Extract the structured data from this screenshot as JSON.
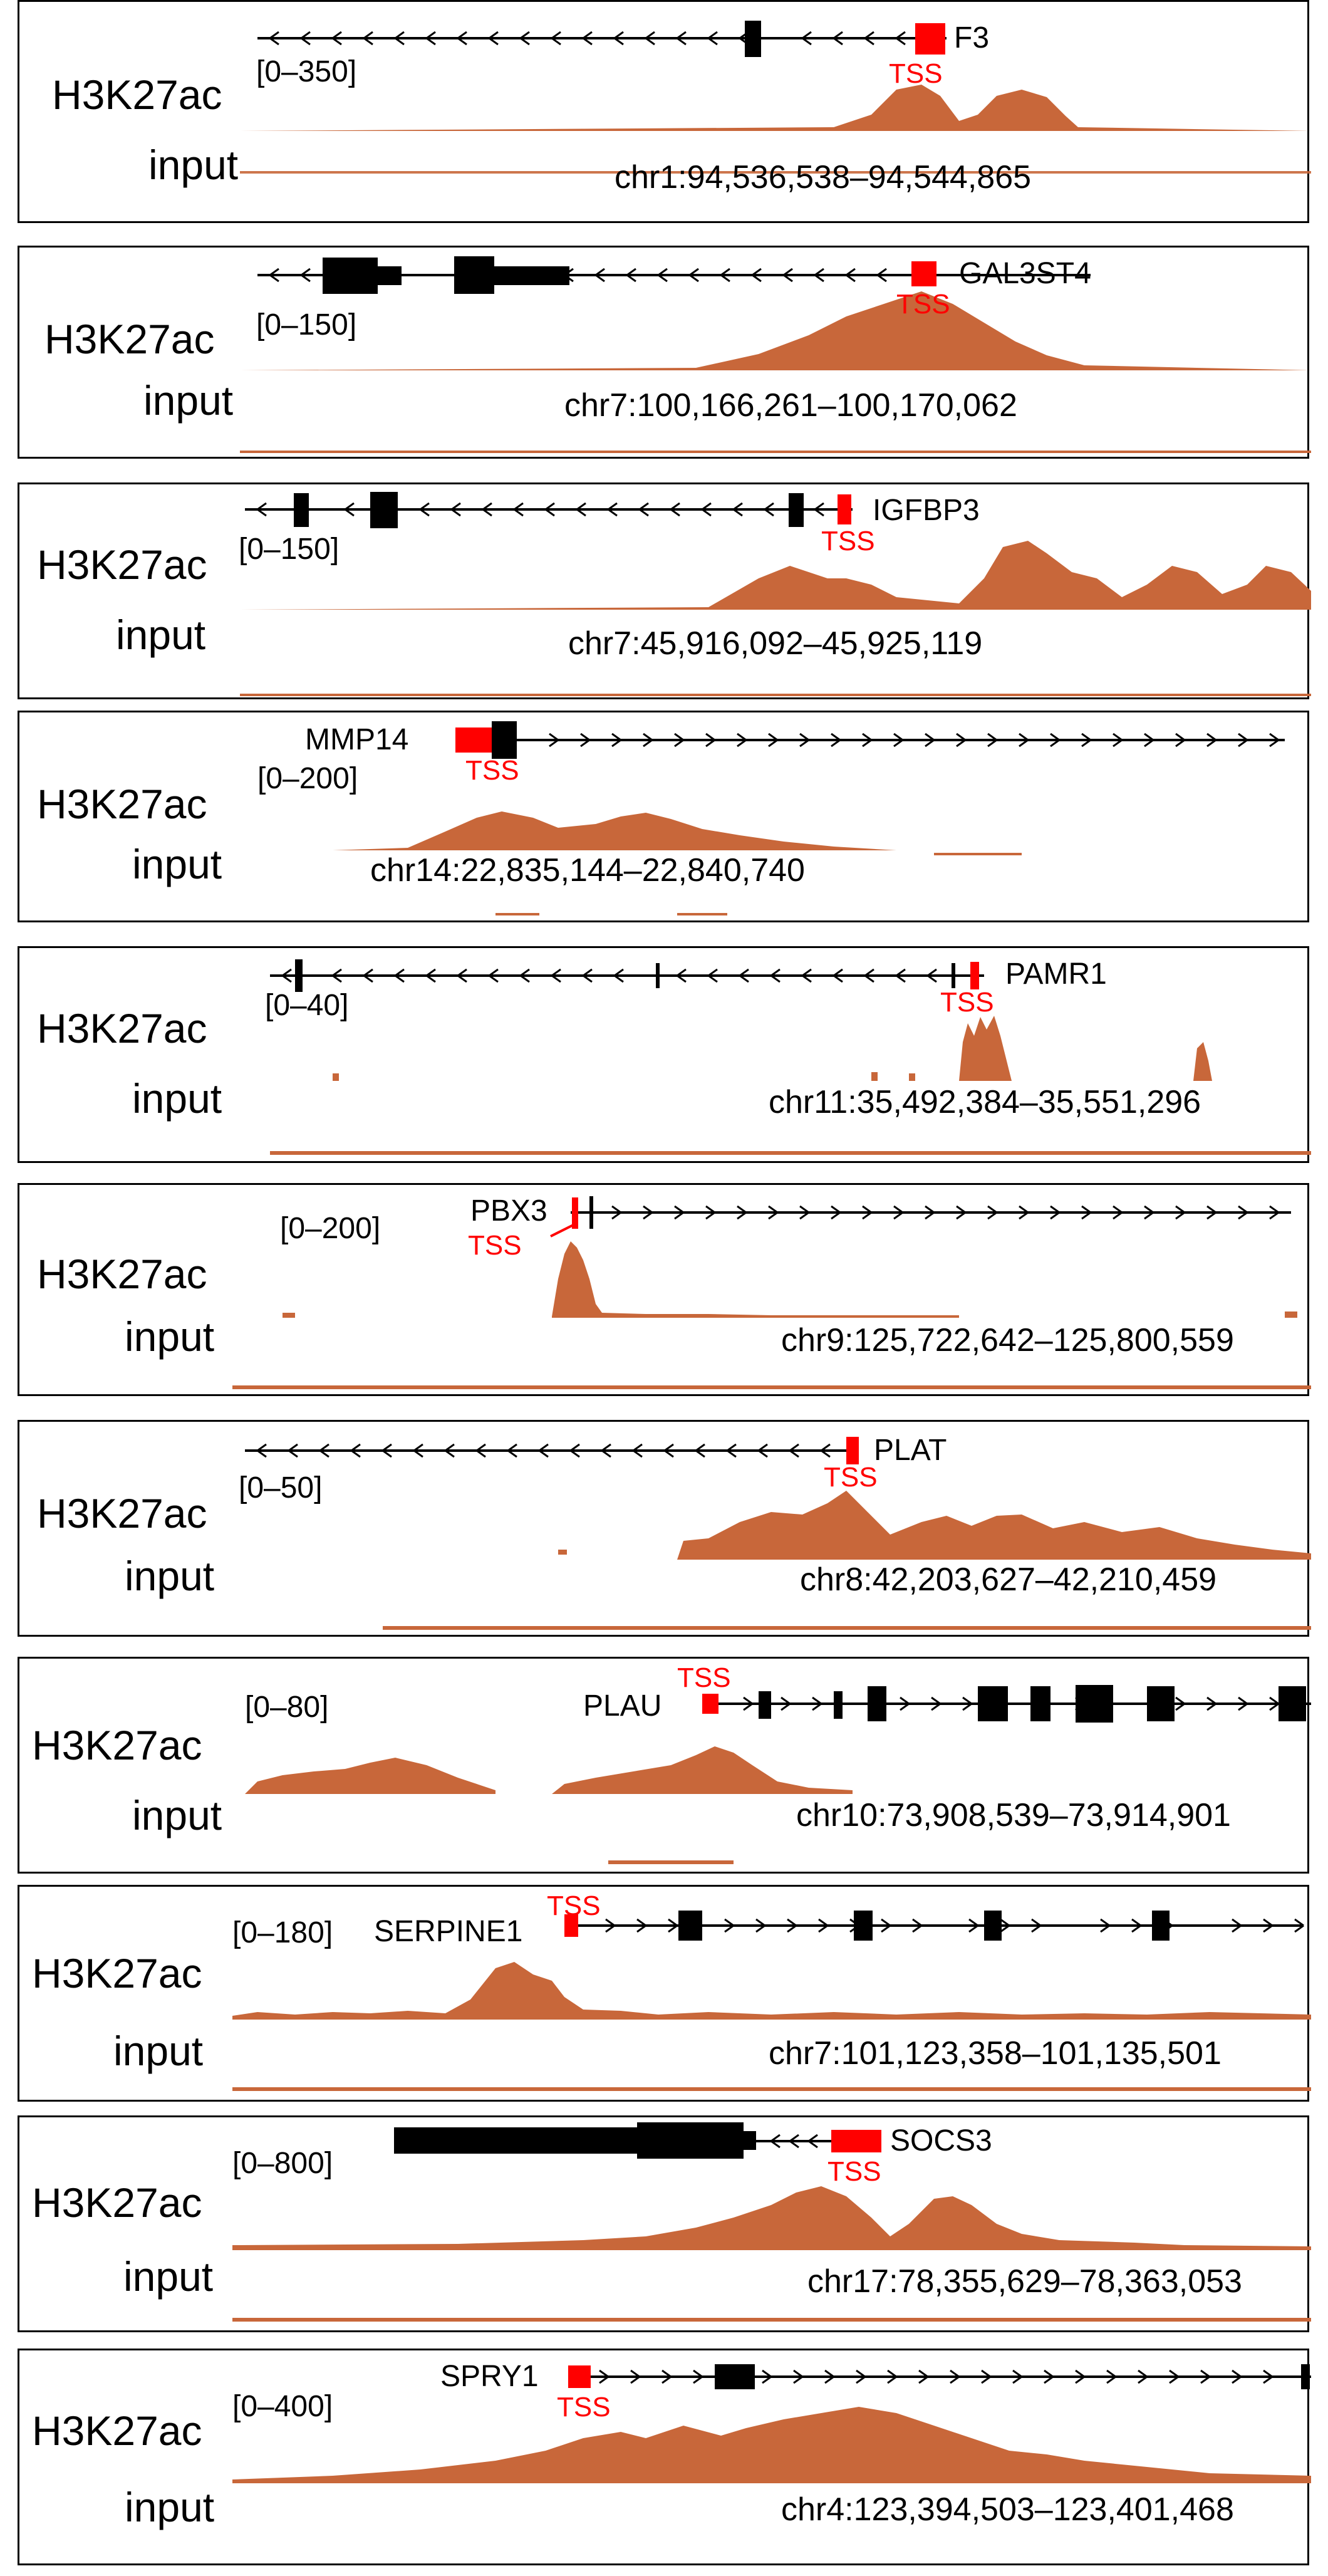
{
  "colors": {
    "signal": "#c8673a",
    "tss": "#ff0000",
    "gene": "#000000"
  },
  "panels": [
    {
      "gene": "F3",
      "strand": "-",
      "scale": "[0–350]",
      "coord": "chr1:94,536,538–94,544,865",
      "mark": "H3K27ac",
      "input": "input",
      "tss": "TSS"
    },
    {
      "gene": "GAL3ST4",
      "strand": "-",
      "scale": "[0–150]",
      "coord": "chr7:100,166,261–100,170,062",
      "mark": "H3K27ac",
      "input": "input",
      "tss": "TSS"
    },
    {
      "gene": "IGFBP3",
      "strand": "-",
      "scale": "[0–150]",
      "coord": "chr7:45,916,092–45,925,119",
      "mark": "H3K27ac",
      "input": "input",
      "tss": "TSS"
    },
    {
      "gene": "MMP14",
      "strand": "+",
      "scale": "[0–200]",
      "coord": "chr14:22,835,144–22,840,740",
      "mark": "H3K27ac",
      "input": "input",
      "tss": "TSS"
    },
    {
      "gene": "PAMR1",
      "strand": "-",
      "scale": "[0–40]",
      "coord": "chr11:35,492,384–35,551,296",
      "mark": "H3K27ac",
      "input": "input",
      "tss": "TSS"
    },
    {
      "gene": "PBX3",
      "strand": "+",
      "scale": "[0–200]",
      "coord": "chr9:125,722,642–125,800,559",
      "mark": "H3K27ac",
      "input": "input",
      "tss": "TSS"
    },
    {
      "gene": "PLAT",
      "strand": "-",
      "scale": "[0–50]",
      "coord": "chr8:42,203,627–42,210,459",
      "mark": "H3K27ac",
      "input": "input",
      "tss": "TSS"
    },
    {
      "gene": "PLAU",
      "strand": "+",
      "scale": "[0–80]",
      "coord": "chr10:73,908,539–73,914,901",
      "mark": "H3K27ac",
      "input": "input",
      "tss": "TSS"
    },
    {
      "gene": "SERPINE1",
      "strand": "+",
      "scale": "[0–180]",
      "coord": "chr7:101,123,358–101,135,501",
      "mark": "H3K27ac",
      "input": "input",
      "tss": "TSS"
    },
    {
      "gene": "SOCS3",
      "strand": "-",
      "scale": "[0–800]",
      "coord": "chr17:78,355,629–78,363,053",
      "mark": "H3K27ac",
      "input": "input",
      "tss": "TSS"
    },
    {
      "gene": "SPRY1",
      "strand": "+",
      "scale": "[0–400]",
      "coord": "chr4:123,394,503–123,401,468",
      "mark": "H3K27ac",
      "input": "input",
      "tss": "TSS"
    }
  ]
}
